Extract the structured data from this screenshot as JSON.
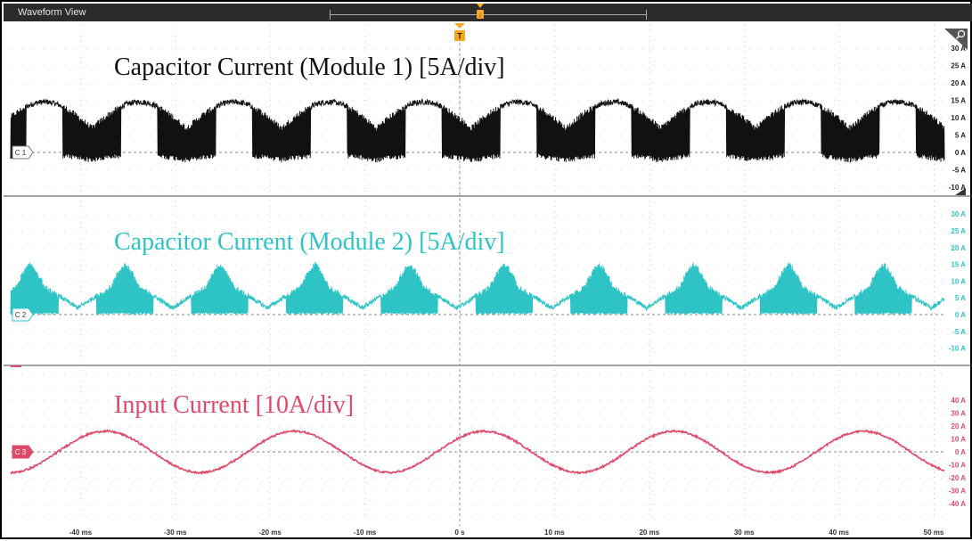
{
  "window": {
    "title": "Waveform View"
  },
  "trigger_marker": "T",
  "overview_marker": "↓",
  "x_axis": {
    "ticks": [
      "-40 ms",
      "-30 ms",
      "-20 ms",
      "-10 ms",
      "0 s",
      "10 ms",
      "20 ms",
      "30 ms",
      "40 ms",
      "50 ms"
    ]
  },
  "channels": [
    {
      "id": "C1",
      "tag": "C 1",
      "label": "Capacitor Current (Module 1) [5A/div]",
      "color": "#111111",
      "y_ticks": [
        "30 A",
        "25 A",
        "20 A",
        "15 A",
        "10 A",
        "5 A",
        "0 A",
        "-5 A",
        "-10 A"
      ]
    },
    {
      "id": "C2",
      "tag": "C 2",
      "label": "Capacitor Current (Module 2) [5A/div]",
      "color": "#2ec4c6",
      "y_ticks": [
        "30 A",
        "25 A",
        "20 A",
        "15 A",
        "10 A",
        "5 A",
        "0 A",
        "-5 A",
        "-10 A"
      ]
    },
    {
      "id": "C3",
      "tag": "C 3",
      "label": "Input Current [10A/div]",
      "color": "#e04a6a",
      "y_ticks": [
        "40 A",
        "30 A",
        "20 A",
        "10 A",
        "0 A",
        "-10 A",
        "-20 A",
        "-30 A",
        "-40 A"
      ]
    }
  ]
}
